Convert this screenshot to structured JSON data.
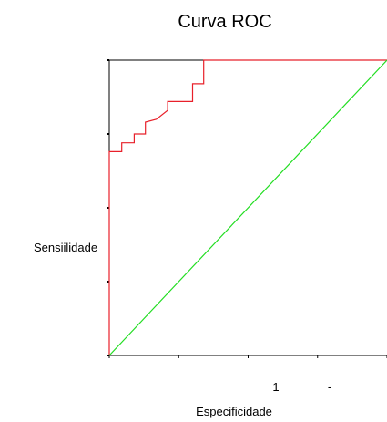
{
  "chart_data": {
    "type": "line",
    "title": "Curva ROC",
    "xlabel": "Especificidade",
    "ylabel": "Sensiilidade",
    "xlim": [
      0,
      1
    ],
    "ylim": [
      0,
      1
    ],
    "x_tick_labels": [
      "1",
      "-"
    ],
    "grid": false,
    "series": [
      {
        "color": "#e8202a",
        "x": [
          0,
          0,
          0.045,
          0.045,
          0.09,
          0.09,
          0.13,
          0.13,
          0.17,
          0.21,
          0.21,
          0.3,
          0.3,
          0.34,
          0.34,
          1.0
        ],
        "y": [
          0,
          0.69,
          0.69,
          0.72,
          0.72,
          0.75,
          0.75,
          0.79,
          0.8,
          0.83,
          0.86,
          0.86,
          0.92,
          0.92,
          1.0,
          1.0
        ]
      },
      {
        "color": "#22dd22",
        "x": [
          0,
          1
        ],
        "y": [
          0,
          1
        ]
      }
    ]
  }
}
